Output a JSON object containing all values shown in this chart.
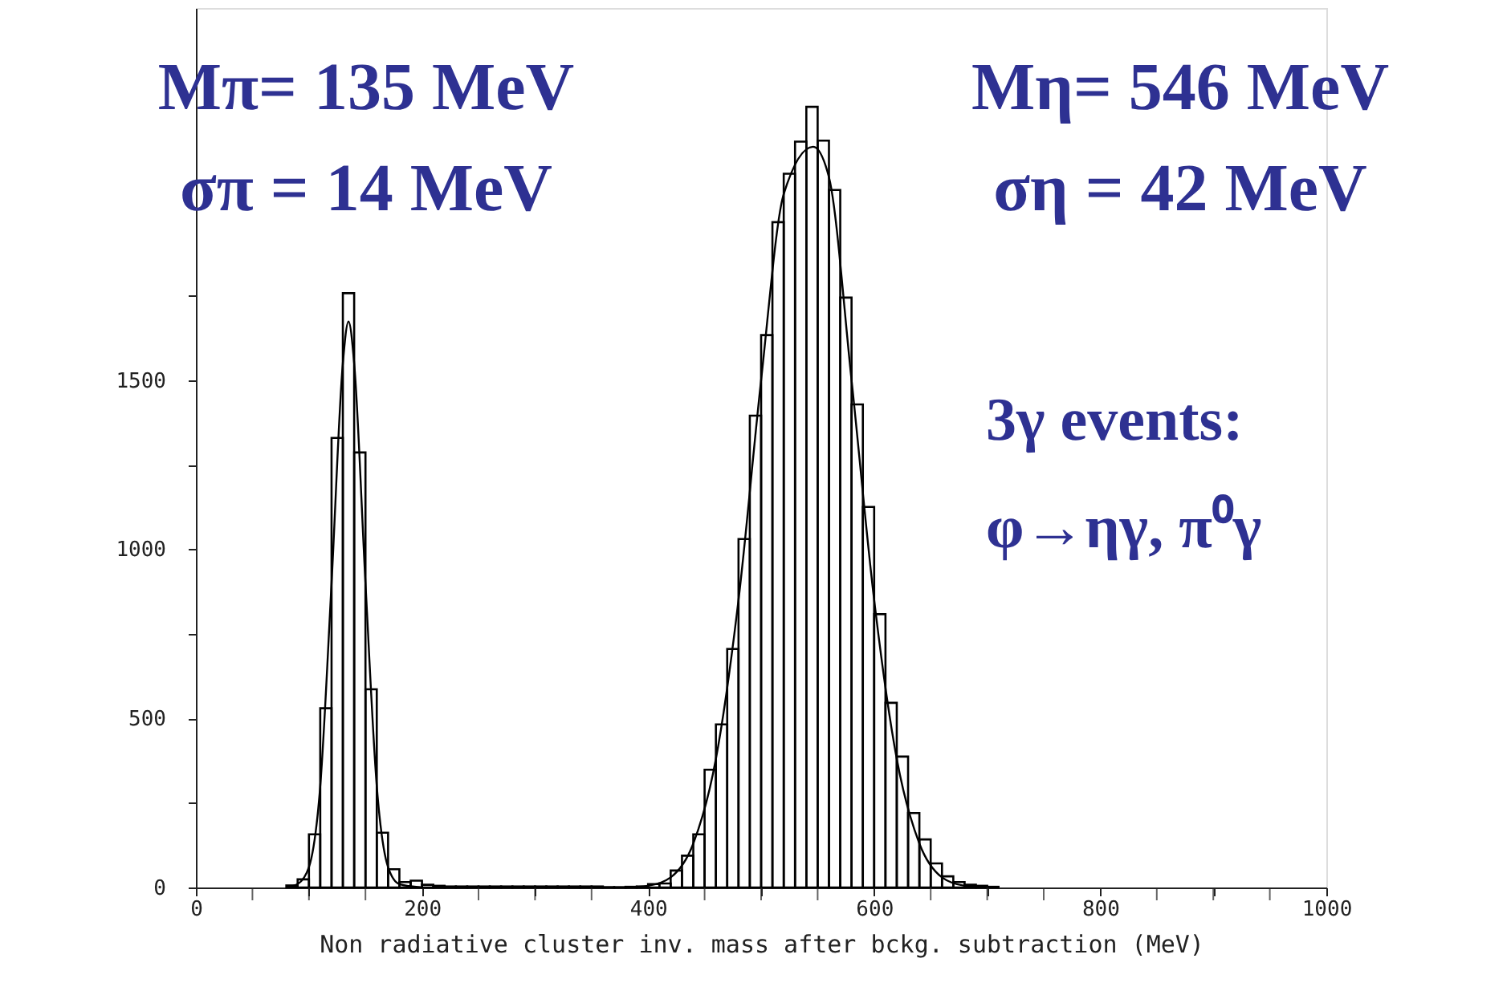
{
  "chart_data": {
    "type": "histogram",
    "xlabel": "Non radiative cluster inv. mass after bckg. subtraction   (MeV)",
    "bins": [
      80,
      90,
      100,
      110,
      120,
      130,
      140,
      150,
      160,
      170,
      180,
      190,
      200,
      210,
      220,
      230,
      240,
      250,
      260,
      270,
      280,
      290,
      300,
      310,
      320,
      330,
      340,
      350,
      360,
      370,
      380,
      390,
      400,
      410,
      420,
      430,
      440,
      450,
      460,
      470,
      480,
      490,
      500,
      510,
      520,
      530,
      540,
      550,
      560,
      570,
      580,
      590,
      600,
      610,
      620,
      630,
      640,
      650,
      660,
      670,
      680,
      690,
      700,
      710
    ],
    "values": [
      6,
      24,
      157,
      530,
      1329,
      1757,
      1286,
      586,
      162,
      54,
      16,
      20,
      8,
      5,
      3,
      3,
      3,
      3,
      3,
      3,
      3,
      3,
      3,
      3,
      3,
      3,
      3,
      3,
      1,
      1,
      2,
      3,
      10,
      12,
      50,
      94,
      157,
      348,
      482,
      705,
      1030,
      1395,
      1633,
      1967,
      2110,
      2205,
      2308,
      2208,
      2062,
      1744,
      1428,
      1125,
      808,
      546,
      387,
      220,
      142,
      71,
      33,
      16,
      8,
      5,
      2
    ],
    "color": "#000000",
    "series": [
      {
        "type": "line",
        "color": "#000000",
        "x": [
          80,
          90,
          100,
          110,
          120,
          130,
          135,
          140,
          150,
          160,
          170,
          180,
          200
        ],
        "values": [
          0,
          10,
          60,
          300,
          900,
          1550,
          1673,
          1550,
          900,
          300,
          60,
          10,
          0
        ]
      },
      {
        "type": "line",
        "color": "#000000",
        "x": [
          380,
          400,
          420,
          440,
          460,
          480,
          500,
          520,
          546,
          560,
          580,
          600,
          620,
          640,
          660,
          680,
          700
        ],
        "values": [
          0,
          5,
          30,
          130,
          380,
          850,
          1500,
          2050,
          2190,
          2100,
          1500,
          850,
          380,
          130,
          30,
          5,
          0
        ]
      }
    ],
    "xlim": [
      0,
      1000
    ],
    "ylim": [
      0,
      2600
    ],
    "xticks": [
      0,
      {
        "value": 50,
        "label": null
      },
      200,
      {
        "value": 100,
        "label": null
      },
      {
        "value": 150,
        "label": null
      },
      {
        "value": 250,
        "label": null
      },
      {
        "value": 300,
        "label": null
      },
      {
        "value": 350,
        "label": null
      },
      400,
      {
        "value": 450,
        "label": null
      },
      {
        "value": 500,
        "label": null
      },
      {
        "value": 550,
        "label": null
      },
      600,
      {
        "value": 650,
        "label": null
      },
      {
        "value": 700,
        "label": null
      },
      {
        "value": 750,
        "label": null
      },
      800,
      {
        "value": 850,
        "label": null
      },
      {
        "value": 900,
        "label": null
      },
      {
        "value": 950,
        "label": null
      },
      1000
    ],
    "yticks": [
      0,
      {
        "value": 250,
        "label": null
      },
      500,
      {
        "value": 750,
        "label": null
      },
      1000,
      {
        "value": 1250,
        "label": null
      },
      1500,
      {
        "value": 1750,
        "label": null
      }
    ],
    "grid": false,
    "annotations": [
      "Mπ= 135 MeV",
      "σπ = 14 MeV",
      "Mη= 546 MeV",
      "ση = 42 MeV",
      "3γ events:",
      "φ→ηγ, π⁰γ"
    ]
  }
}
